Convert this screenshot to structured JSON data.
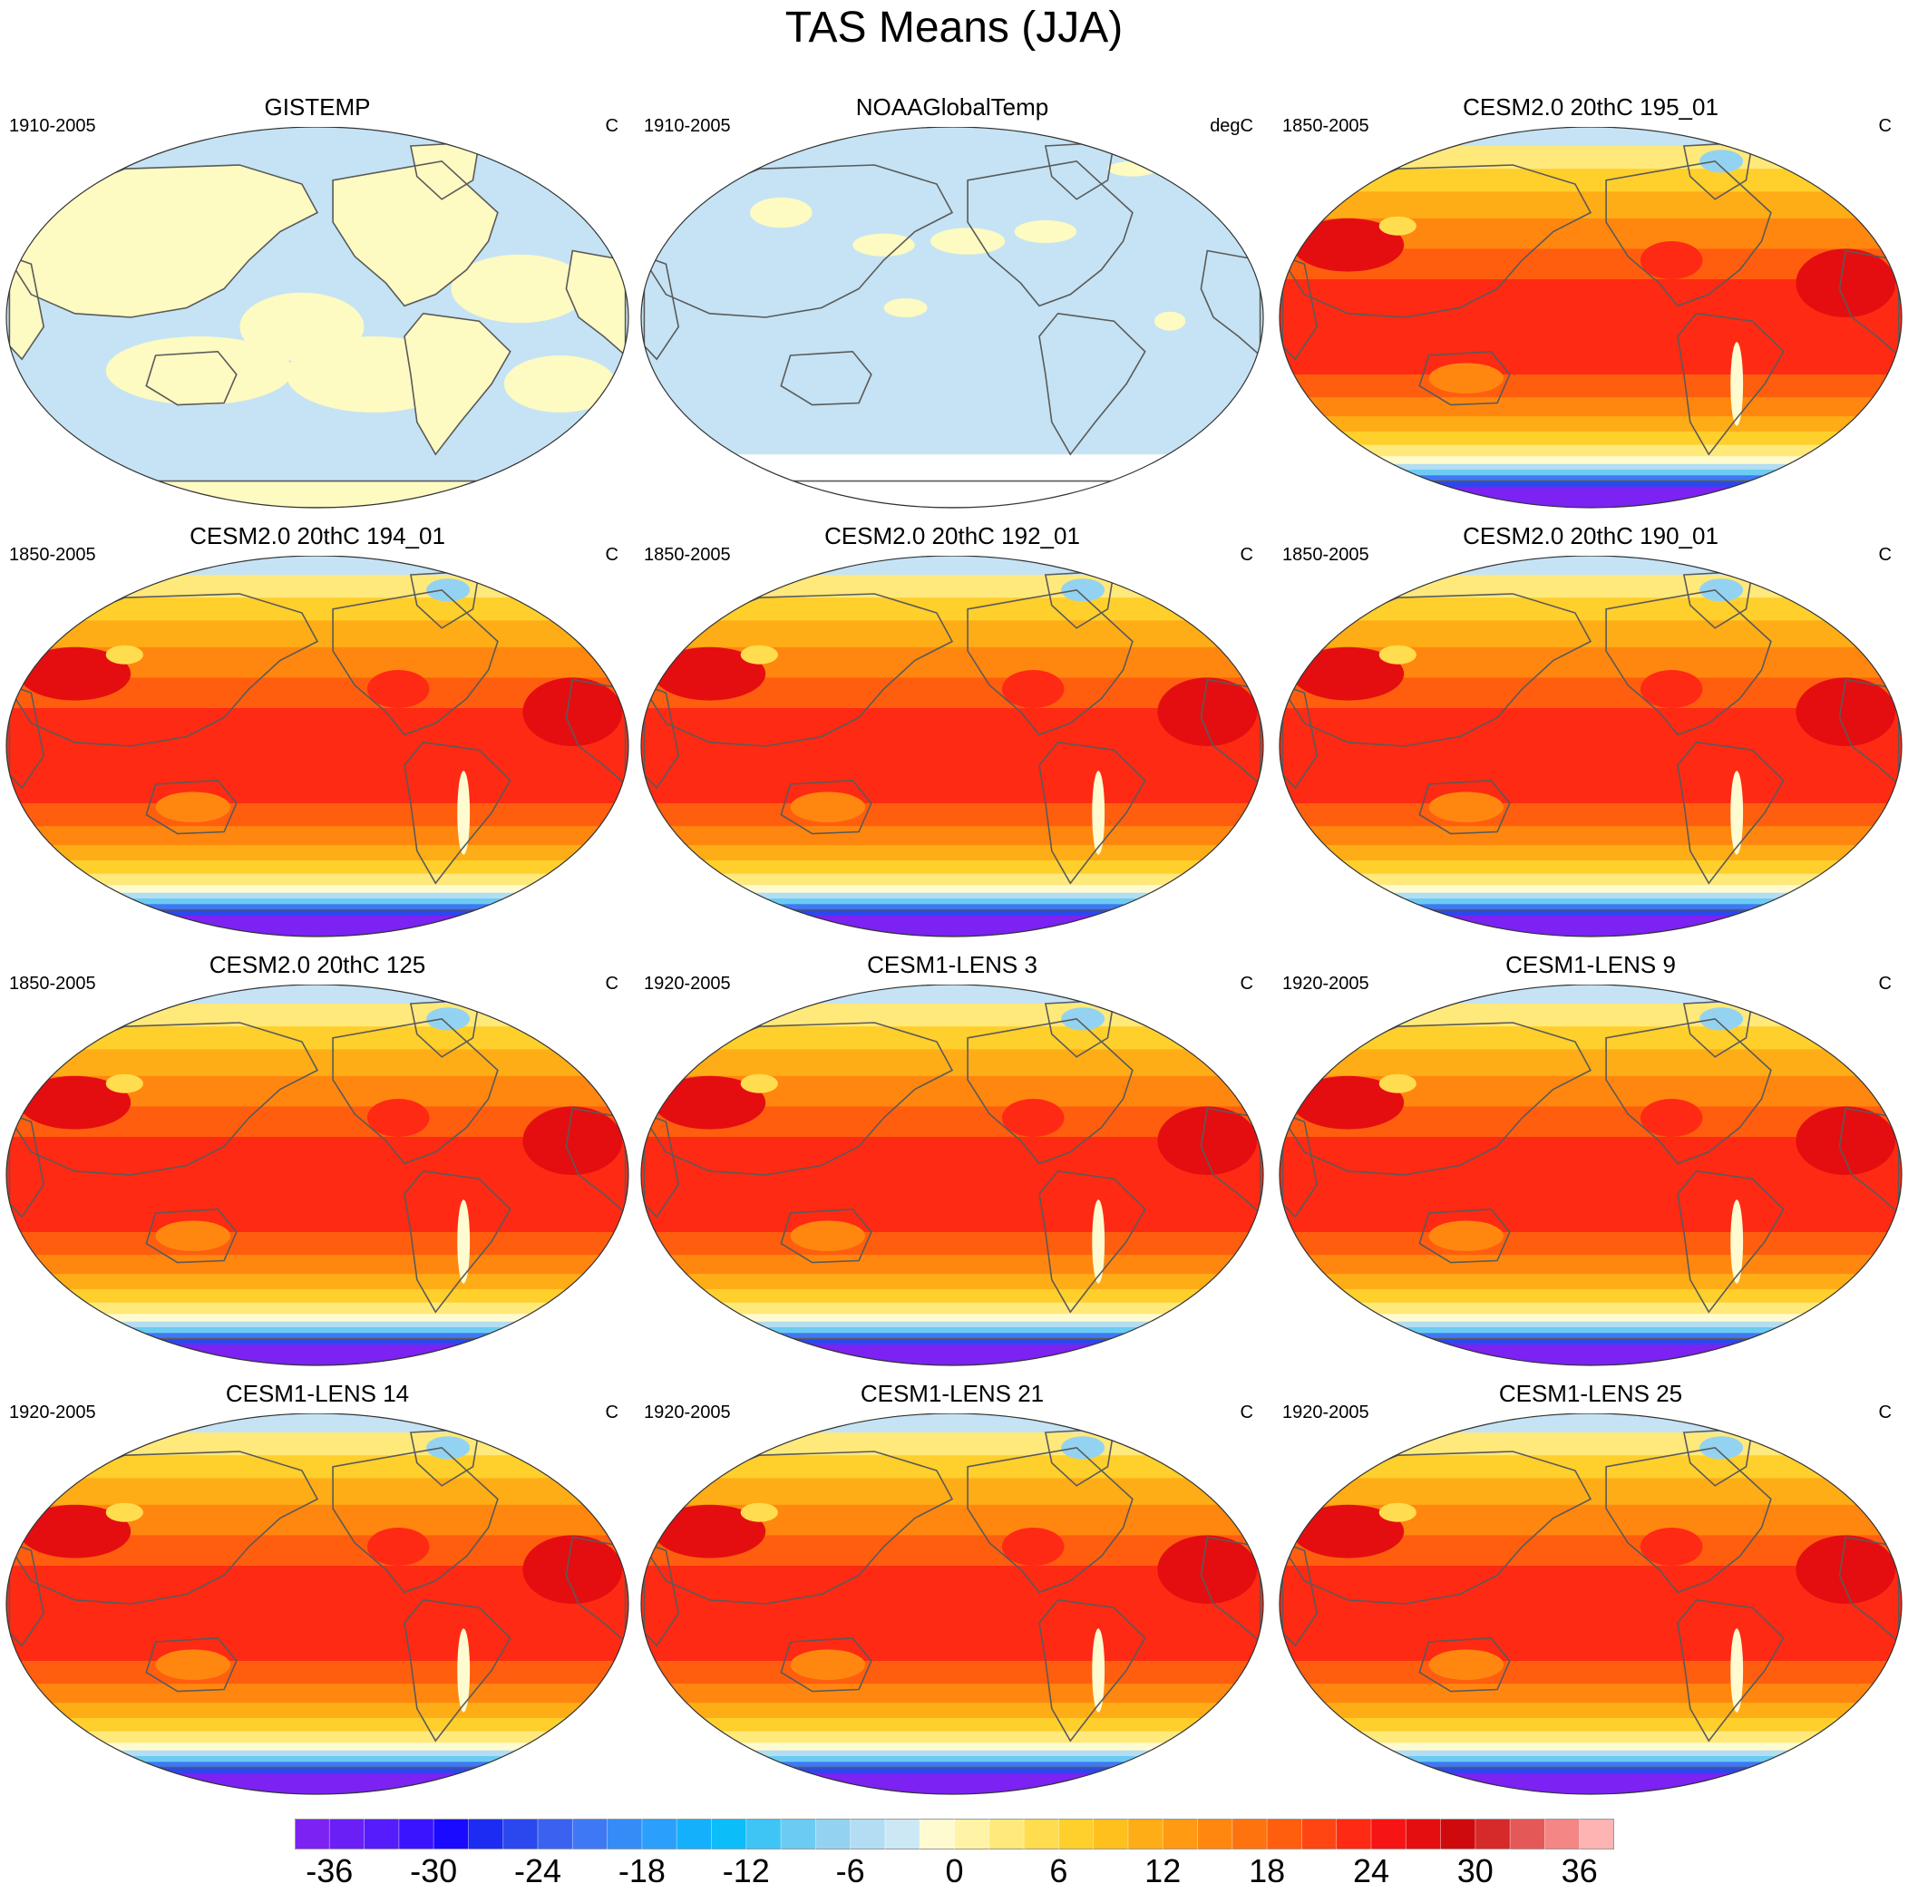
{
  "title": "TAS Means (JJA)",
  "colors": {
    "ocean_obs": "#c5e3f4",
    "land_obs": "#fdfac2",
    "ice_obs": "#ffffff",
    "warm_deep": "#e41a1a",
    "warm_orange": "#ff8a12",
    "warm_yellow": "#ffd23a",
    "cold_blue": "#2b60ff",
    "cold_violet": "#7c22f2",
    "coast": "#5a5a5a"
  },
  "panels": [
    {
      "title": "GISTEMP",
      "years": "1910-2005",
      "units": "C",
      "kind": "obs_mixed"
    },
    {
      "title": "NOAAGlobalTemp",
      "years": "1910-2005",
      "units": "degC",
      "kind": "obs_cool"
    },
    {
      "title": "CESM2.0 20thC 195_01",
      "years": "1850-2005",
      "units": "C",
      "kind": "model"
    },
    {
      "title": "CESM2.0 20thC 194_01",
      "years": "1850-2005",
      "units": "C",
      "kind": "model"
    },
    {
      "title": "CESM2.0 20thC 192_01",
      "years": "1850-2005",
      "units": "C",
      "kind": "model"
    },
    {
      "title": "CESM2.0 20thC 190_01",
      "years": "1850-2005",
      "units": "C",
      "kind": "model"
    },
    {
      "title": "CESM2.0 20thC 125",
      "years": "1850-2005",
      "units": "C",
      "kind": "model"
    },
    {
      "title": "CESM1-LENS 3",
      "years": "1920-2005",
      "units": "C",
      "kind": "model"
    },
    {
      "title": "CESM1-LENS 9",
      "years": "1920-2005",
      "units": "C",
      "kind": "model"
    },
    {
      "title": "CESM1-LENS 14",
      "years": "1920-2005",
      "units": "C",
      "kind": "model"
    },
    {
      "title": "CESM1-LENS 21",
      "years": "1920-2005",
      "units": "C",
      "kind": "model"
    },
    {
      "title": "CESM1-LENS 25",
      "years": "1920-2005",
      "units": "C",
      "kind": "model"
    }
  ],
  "colorbar": {
    "colors": [
      "#7c22f2",
      "#6a1ff7",
      "#561cfb",
      "#3a14ff",
      "#1a0aff",
      "#1c2cf2",
      "#2b48ee",
      "#3a62f0",
      "#3f78f5",
      "#358cf7",
      "#2a9ffb",
      "#14b0fc",
      "#0bbdf9",
      "#3ec4f5",
      "#6ccbf2",
      "#93d3f1",
      "#b3ddf3",
      "#cde8f5",
      "#fffbd1",
      "#fff3a6",
      "#ffe97b",
      "#ffdd4e",
      "#ffcf2c",
      "#ffc01e",
      "#ffad16",
      "#ff9a12",
      "#ff870f",
      "#ff730e",
      "#ff5e0f",
      "#ff4612",
      "#ff2a13",
      "#f71414",
      "#e40e10",
      "#cf0a0c",
      "#d62a2a",
      "#e55858",
      "#f48686",
      "#ffb4b4"
    ],
    "tick_labels": [
      "-36",
      "-30",
      "-24",
      "-18",
      "-12",
      "-6",
      "0",
      "6",
      "12",
      "18",
      "24",
      "30",
      "36"
    ]
  }
}
